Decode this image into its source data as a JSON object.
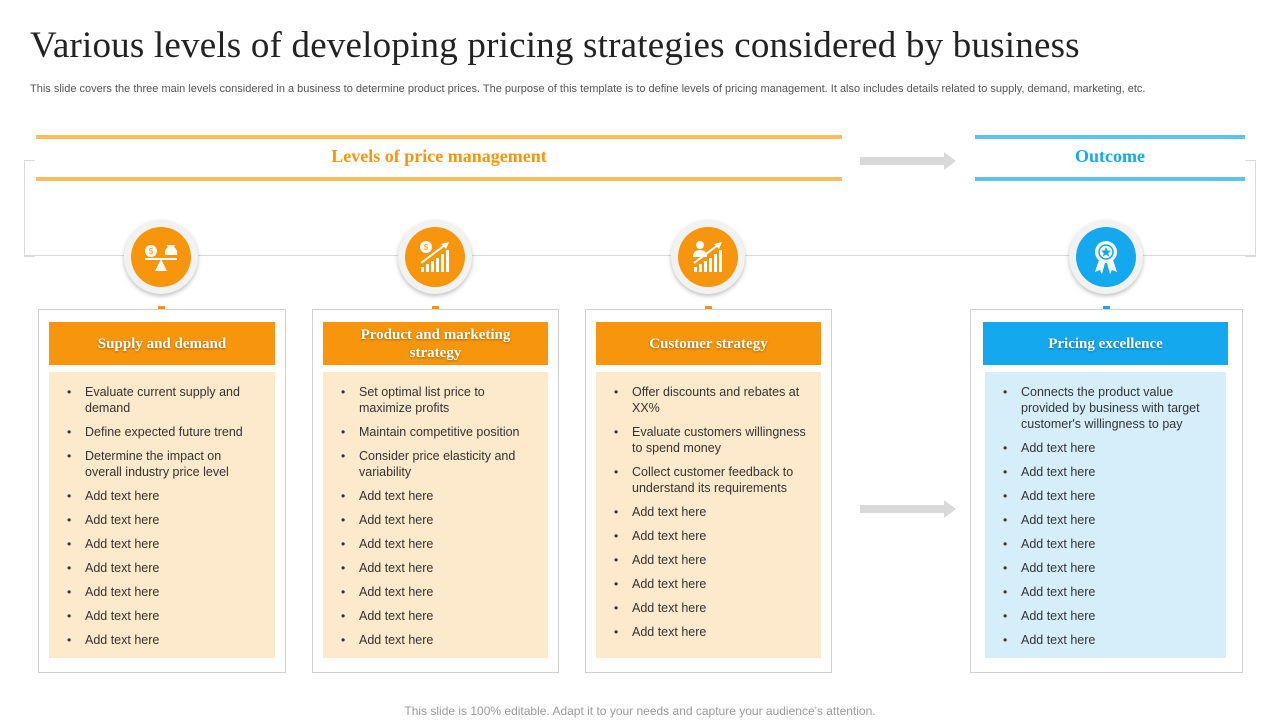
{
  "title": "Various levels of developing pricing strategies considered by business",
  "subtitle": "This slide covers  the three main levels  considered in a business to determine product prices. The purpose of this template is to define levels of pricing management. It also includes details related to supply, demand, marketing, etc.",
  "header_left": "Levels of price management",
  "header_right": "Outcome",
  "colors": {
    "orange": "#f7960c",
    "orange_light": "#fde9cb",
    "orange_band": "#f6be5e",
    "blue": "#14a9ee",
    "blue_light": "#d5eefa",
    "blue_band": "#5cc2ee",
    "arrow": "#d9d9d9"
  },
  "cards": [
    {
      "heading": "Supply and demand",
      "icon": "balance-scale-icon",
      "items": [
        "Evaluate current supply and demand",
        "Define expected future trend",
        "Determine the impact on overall  industry price level",
        "Add text here",
        "Add text here",
        "Add text here",
        "Add text here",
        "Add text here",
        "Add text here",
        "Add text here"
      ]
    },
    {
      "heading": "Product and marketing strategy",
      "icon": "growth-chart-icon",
      "items": [
        "Set optimal list price to maximize profits",
        "Maintain competitive position",
        "Consider price elasticity and variability",
        "Add text here",
        "Add text here",
        "Add text here",
        "Add text here",
        "Add text here",
        "Add text here",
        "Add text here"
      ]
    },
    {
      "heading": "Customer strategy",
      "icon": "customer-growth-icon",
      "items": [
        "Offer discounts and rebates at XX%",
        "Evaluate customers willingness to spend money",
        "Collect customer feedback to understand  its requirements",
        "Add text here",
        "Add text here",
        "Add text here",
        "Add text here",
        "Add text here",
        "Add text here"
      ]
    },
    {
      "heading": "Pricing excellence",
      "icon": "award-badge-icon",
      "items": [
        "Connects the product value provided  by business with  target customer's willingness to pay",
        "Add text here",
        "Add text here",
        "Add text here",
        "Add text here",
        "Add text here",
        "Add text here",
        "Add text here",
        "Add text here",
        "Add text here"
      ]
    }
  ],
  "footer": "This slide is 100% editable. Adapt it to your needs and capture your audience's attention."
}
